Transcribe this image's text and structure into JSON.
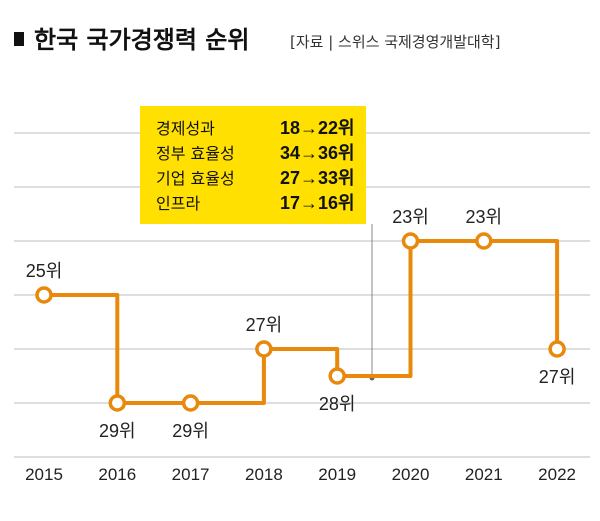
{
  "header": {
    "title": "한국 국가경쟁력 순위",
    "source": "[자료 | 스위스 국제경영개발대학]"
  },
  "colors": {
    "line": "#E8890C",
    "grid": "#BDBDBD",
    "callout_bg": "#FFE000",
    "marker_fill": "#ffffff"
  },
  "callout": {
    "rows": [
      {
        "label": "경제성과",
        "value": "18→22위"
      },
      {
        "label": "정부 효율성",
        "value": "34→36위"
      },
      {
        "label": "기업 효율성",
        "value": "27→33위"
      },
      {
        "label": "인프라",
        "value": "17→16위"
      }
    ]
  },
  "chart_data": {
    "type": "line",
    "line_shape": "step",
    "x": [
      "2015",
      "2016",
      "2017",
      "2018",
      "2019",
      "2020",
      "2021",
      "2022"
    ],
    "values": [
      25,
      29,
      29,
      27,
      28,
      23,
      23,
      27
    ],
    "data_labels": [
      "25위",
      "29위",
      "29위",
      "27위",
      "28위",
      "23위",
      "23위",
      "27위"
    ],
    "y_inverted": true,
    "ylim": [
      22,
      30
    ],
    "grid": true
  }
}
